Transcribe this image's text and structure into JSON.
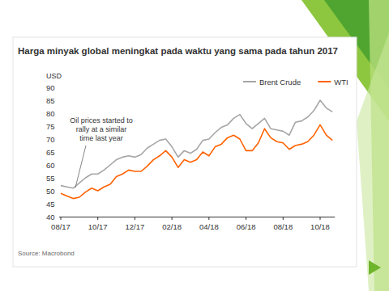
{
  "chart_data": {
    "type": "line",
    "title": "Harga minyak global meningkat pada waktu yang sama pada tahun 2017",
    "y_label": "USD",
    "annotation": [
      "Oil prices started to",
      "rally at a similar",
      "time last year"
    ],
    "source": "Source: Macrobond",
    "categories": [
      "08/17",
      null,
      null,
      null,
      null,
      null,
      "10/17",
      null,
      null,
      null,
      null,
      null,
      "12/17",
      null,
      null,
      null,
      null,
      null,
      "02/18",
      null,
      null,
      null,
      null,
      null,
      "04/18",
      null,
      null,
      null,
      null,
      null,
      "06/18",
      null,
      null,
      null,
      null,
      null,
      "08/18",
      null,
      null,
      null,
      null,
      null,
      "10/18",
      null,
      null
    ],
    "series": [
      {
        "name": "Brent Crude",
        "color": "#a6a6a6",
        "values": [
          52,
          51.5,
          51,
          53,
          55,
          56.5,
          56.5,
          58,
          60,
          62,
          63,
          63.5,
          63,
          64,
          66.5,
          68,
          69.5,
          70,
          67,
          63,
          65.5,
          64.5,
          66,
          69.5,
          70,
          72.5,
          74.5,
          75.5,
          78,
          79.5,
          76,
          74,
          76,
          78,
          74,
          73.5,
          73,
          71.5,
          76.5,
          77,
          78.5,
          81,
          85,
          82,
          80.5
        ]
      },
      {
        "name": "WTI",
        "color": "#ff6200",
        "values": [
          49,
          48,
          47,
          47.5,
          49.5,
          51,
          50,
          51.5,
          52.5,
          55.5,
          56.5,
          58,
          57.5,
          57.5,
          59.5,
          62,
          63.5,
          65.5,
          63,
          59,
          62,
          61,
          62,
          65,
          63.5,
          67,
          68,
          70.5,
          71.5,
          70,
          65.5,
          65.5,
          68.5,
          74,
          70.5,
          69,
          68.5,
          66,
          67.5,
          68,
          69,
          71.5,
          75.5,
          71.5,
          69.5
        ]
      }
    ],
    "ylim": [
      40,
      90
    ],
    "yticks": [
      40,
      45,
      50,
      55,
      60,
      65,
      70,
      75,
      80,
      85,
      90
    ],
    "grid": false,
    "legend": "top-right"
  }
}
